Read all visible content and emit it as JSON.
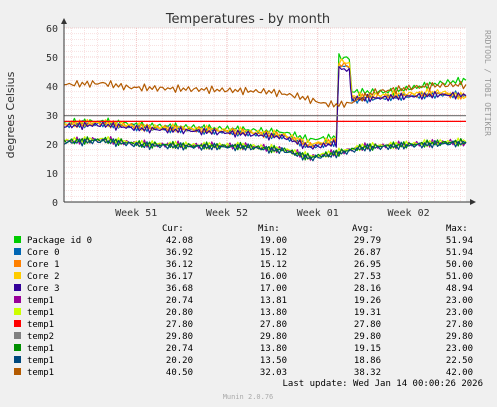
{
  "chart_data": {
    "type": "line",
    "title": "Temperatures - by month",
    "ylabel": "degrees Celsius",
    "xlabel": "",
    "watermark": "RRDTOOL / TOBI OETIKER",
    "ylim": [
      0,
      60
    ],
    "yticks": [
      0,
      10,
      20,
      30,
      40,
      50,
      60
    ],
    "x_ticks": [
      "Week 51",
      "Week 52",
      "Week 01",
      "Week 02"
    ],
    "x_range_days": [
      0,
      31
    ],
    "x_tick_days": [
      5.57,
      12.57,
      19.57,
      26.57
    ],
    "grid": true,
    "legend_header": {
      "cur": "Cur:",
      "min": "Min:",
      "avg": "Avg:",
      "max": "Max:"
    },
    "series": [
      {
        "name": "Package id 0",
        "color": "#00cc00",
        "cur": "42.08",
        "min": "19.00",
        "avg": "29.79",
        "max": "51.94",
        "points": [
          [
            0,
            27.5
          ],
          [
            3,
            27.8
          ],
          [
            6,
            26.5
          ],
          [
            10,
            25.8
          ],
          [
            14,
            25
          ],
          [
            17,
            24
          ],
          [
            19,
            21.5
          ],
          [
            21,
            22.5
          ],
          [
            21.2,
            50
          ],
          [
            22,
            49.5
          ],
          [
            22.2,
            38
          ],
          [
            25,
            38
          ],
          [
            27,
            39.5
          ],
          [
            29,
            41
          ],
          [
            31,
            42
          ]
        ]
      },
      {
        "name": "Core 0",
        "color": "#0066b3",
        "cur": "36.92",
        "min": "15.12",
        "avg": "26.87",
        "max": "51.94",
        "points": [
          [
            0,
            26.5
          ],
          [
            3,
            27
          ],
          [
            6,
            25.5
          ],
          [
            10,
            24.8
          ],
          [
            14,
            23.8
          ],
          [
            17,
            22.5
          ],
          [
            19,
            19
          ],
          [
            21,
            20.5
          ],
          [
            21.2,
            47
          ],
          [
            22,
            46.5
          ],
          [
            22.2,
            35
          ],
          [
            25,
            36
          ],
          [
            27,
            36.5
          ],
          [
            29,
            37
          ],
          [
            31,
            36.9
          ]
        ]
      },
      {
        "name": "Core 1",
        "color": "#ff8000",
        "cur": "36.12",
        "min": "15.12",
        "avg": "26.95",
        "max": "50.00",
        "points": [
          [
            0,
            26.8
          ],
          [
            3,
            27.2
          ],
          [
            6,
            25.8
          ],
          [
            10,
            25
          ],
          [
            14,
            24
          ],
          [
            17,
            22.8
          ],
          [
            19,
            19.5
          ],
          [
            21,
            21
          ],
          [
            21.2,
            47.5
          ],
          [
            22,
            47
          ],
          [
            22.2,
            36
          ],
          [
            25,
            36.5
          ],
          [
            27,
            37
          ],
          [
            29,
            37.5
          ],
          [
            31,
            36.1
          ]
        ]
      },
      {
        "name": "Core 2",
        "color": "#ffcc00",
        "cur": "36.17",
        "min": "16.00",
        "avg": "27.53",
        "max": "51.00",
        "points": [
          [
            0,
            27
          ],
          [
            3,
            27.4
          ],
          [
            6,
            26
          ],
          [
            10,
            25.3
          ],
          [
            14,
            24.4
          ],
          [
            17,
            23.2
          ],
          [
            19,
            20
          ],
          [
            21,
            21.5
          ],
          [
            21.2,
            48.5
          ],
          [
            22,
            48
          ],
          [
            22.2,
            36.5
          ],
          [
            25,
            37
          ],
          [
            27,
            37.5
          ],
          [
            29,
            38
          ],
          [
            31,
            36.2
          ]
        ]
      },
      {
        "name": "Core 3",
        "color": "#330099",
        "cur": "36.68",
        "min": "17.00",
        "avg": "28.16",
        "max": "48.94",
        "points": [
          [
            0,
            26.2
          ],
          [
            3,
            26.6
          ],
          [
            6,
            25.2
          ],
          [
            10,
            24.5
          ],
          [
            14,
            23.5
          ],
          [
            17,
            22.3
          ],
          [
            19,
            18.8
          ],
          [
            21,
            20.2
          ],
          [
            21.2,
            46
          ],
          [
            22,
            45.5
          ],
          [
            22.2,
            35.5
          ],
          [
            25,
            36
          ],
          [
            27,
            36.5
          ],
          [
            29,
            37
          ],
          [
            31,
            36.7
          ]
        ]
      },
      {
        "name": "temp1",
        "color": "#990099",
        "cur": "20.74",
        "min": "13.81",
        "avg": "19.26",
        "max": "23.00",
        "points": [
          [
            0,
            21
          ],
          [
            3,
            21.5
          ],
          [
            6,
            20
          ],
          [
            10,
            19.5
          ],
          [
            14,
            19.3
          ],
          [
            17,
            18
          ],
          [
            19,
            15.5
          ],
          [
            21,
            17
          ],
          [
            23,
            19
          ],
          [
            25,
            19.5
          ],
          [
            27,
            20
          ],
          [
            29,
            20.5
          ],
          [
            31,
            20.7
          ]
        ]
      },
      {
        "name": "temp1",
        "color": "#ccff00",
        "cur": "20.80",
        "min": "13.80",
        "avg": "19.31",
        "max": "23.00",
        "points": [
          [
            0,
            21.1
          ],
          [
            3,
            21.6
          ],
          [
            6,
            20.1
          ],
          [
            10,
            19.6
          ],
          [
            14,
            19.4
          ],
          [
            17,
            18.1
          ],
          [
            19,
            15.6
          ],
          [
            21,
            17.1
          ],
          [
            23,
            19.1
          ],
          [
            25,
            19.6
          ],
          [
            27,
            20.1
          ],
          [
            29,
            20.6
          ],
          [
            31,
            20.8
          ]
        ]
      },
      {
        "name": "temp1",
        "color": "#ff0000",
        "cur": "27.80",
        "min": "27.80",
        "avg": "27.80",
        "max": "27.80",
        "points": [
          [
            0,
            27.8
          ],
          [
            31,
            27.8
          ]
        ]
      },
      {
        "name": "temp2",
        "color": "#808080",
        "cur": "29.80",
        "min": "29.80",
        "avg": "29.80",
        "max": "29.80",
        "points": [
          [
            0,
            29.8
          ],
          [
            31,
            29.8
          ]
        ]
      },
      {
        "name": "temp1",
        "color": "#008f00",
        "cur": "20.74",
        "min": "13.80",
        "avg": "19.15",
        "max": "23.00",
        "points": [
          [
            0,
            20.9
          ],
          [
            3,
            21.4
          ],
          [
            6,
            19.9
          ],
          [
            10,
            19.4
          ],
          [
            14,
            19.2
          ],
          [
            17,
            17.9
          ],
          [
            19,
            15.4
          ],
          [
            21,
            16.9
          ],
          [
            23,
            18.9
          ],
          [
            25,
            19.4
          ],
          [
            27,
            19.9
          ],
          [
            29,
            20.4
          ],
          [
            31,
            20.7
          ]
        ]
      },
      {
        "name": "temp1",
        "color": "#00487d",
        "cur": "20.20",
        "min": "13.50",
        "avg": "18.86",
        "max": "22.50",
        "points": [
          [
            0,
            20.5
          ],
          [
            3,
            21
          ],
          [
            6,
            19.5
          ],
          [
            10,
            19
          ],
          [
            14,
            18.9
          ],
          [
            17,
            17.6
          ],
          [
            19,
            15
          ],
          [
            21,
            16.5
          ],
          [
            23,
            18.5
          ],
          [
            25,
            19
          ],
          [
            27,
            19.5
          ],
          [
            29,
            20
          ],
          [
            31,
            20.2
          ]
        ]
      },
      {
        "name": "temp1",
        "color": "#b35a00",
        "cur": "40.50",
        "min": "32.03",
        "avg": "38.32",
        "max": "42.00",
        "points": [
          [
            0,
            40.5
          ],
          [
            3,
            41
          ],
          [
            5,
            39.5
          ],
          [
            9,
            39
          ],
          [
            13,
            38.5
          ],
          [
            16,
            38
          ],
          [
            18,
            36.5
          ],
          [
            20,
            34
          ],
          [
            21,
            33.5
          ],
          [
            22,
            34
          ],
          [
            24,
            38
          ],
          [
            26,
            39
          ],
          [
            28,
            40
          ],
          [
            31,
            40.5
          ]
        ]
      }
    ]
  },
  "footer": {
    "last_update": "Last update:  Wed Jan 14 00:00:26 2026",
    "munin_version": "Munin 2.0.76"
  }
}
